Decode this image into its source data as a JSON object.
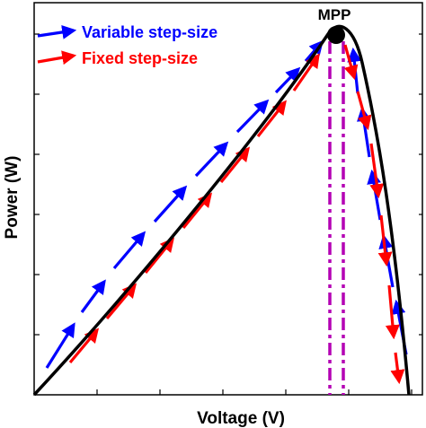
{
  "diagram": {
    "xlabel": "Voltage (V)",
    "ylabel": "Power (W)",
    "peak_label": "MPP",
    "legend": [
      {
        "label": "Variable step-size",
        "color": "#0000ff"
      },
      {
        "label": "Fixed step-size",
        "color": "#ff0000"
      }
    ],
    "colors": {
      "curve": "#000000",
      "variable": "#0000ff",
      "fixed": "#ff0000",
      "mpp_lines": "#b400b4"
    }
  }
}
